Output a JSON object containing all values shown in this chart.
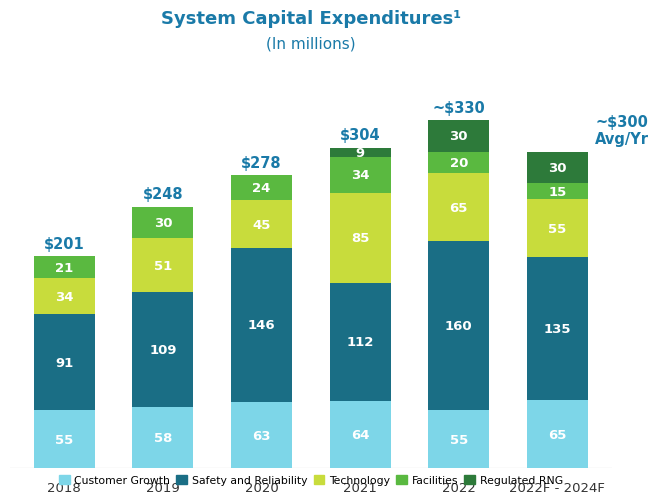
{
  "title_line1": "System Capital Expenditures¹",
  "title_line2": "(In millions)",
  "categories": [
    "2018",
    "2019",
    "2020",
    "2021",
    "2022",
    "2022F - 2024F"
  ],
  "totals": [
    "$201",
    "$248",
    "$278",
    "$304",
    "~$330",
    "~$300\nAvg/Yr"
  ],
  "totals_offset_x": [
    0,
    0,
    0,
    0,
    0,
    0.38
  ],
  "segments": {
    "Customer Growth": [
      55,
      58,
      63,
      64,
      55,
      65
    ],
    "Safety and Reliability": [
      91,
      109,
      146,
      112,
      160,
      135
    ],
    "Technology": [
      34,
      51,
      45,
      85,
      65,
      55
    ],
    "Facilities": [
      21,
      30,
      24,
      34,
      20,
      15
    ],
    "Regulated RNG": [
      0,
      0,
      0,
      9,
      30,
      30
    ]
  },
  "colors": {
    "Customer Growth": "#7dd6e8",
    "Safety and Reliability": "#1a6e85",
    "Technology": "#c8dc3c",
    "Facilities": "#5ab940",
    "Regulated RNG": "#2d7a3a"
  },
  "legend_order": [
    "Customer Growth",
    "Safety and Reliability",
    "Technology",
    "Facilities",
    "Regulated RNG"
  ],
  "title_color": "#1a7aa8",
  "total_color": "#1a7aa8",
  "background_color": "#ffffff",
  "bar_width": 0.62,
  "ylim_max": 390,
  "label_fontsize": 9.5,
  "total_fontsize": 10.5
}
